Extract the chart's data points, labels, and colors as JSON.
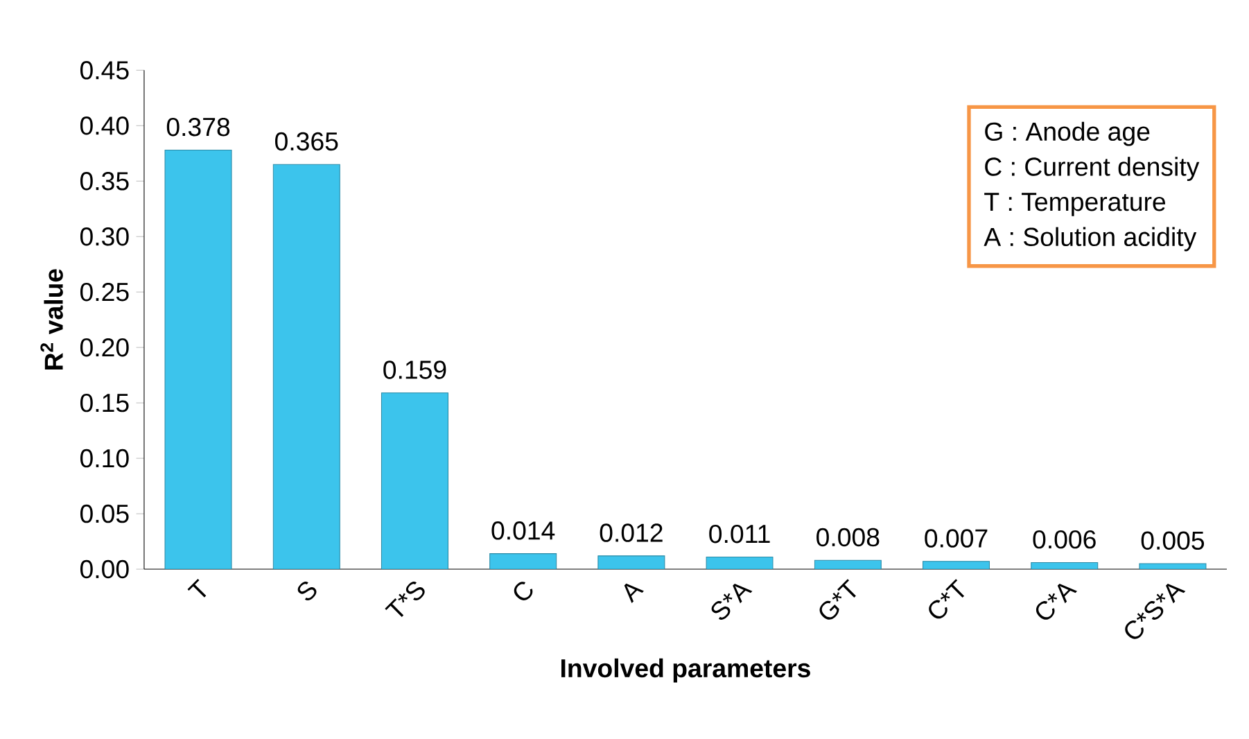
{
  "chart_data": {
    "type": "bar",
    "xlabel": "Involved parameters",
    "ylabel": "R$^{2}$ value",
    "categories": [
      "T",
      "S",
      "T*S",
      "C",
      "A",
      "S*A",
      "G*T",
      "C*T",
      "C*A",
      "C*S*A"
    ],
    "values": [
      0.378,
      0.365,
      0.159,
      0.014,
      0.012,
      0.011,
      0.008,
      0.007,
      0.006,
      0.005
    ],
    "color": "#3cc4ec",
    "ylim": [
      0,
      0.45
    ],
    "yticks": [
      {
        "value": 0,
        "label": "0.00"
      },
      {
        "value": 0.05,
        "label": "0.05"
      },
      {
        "value": 0.1,
        "label": "0.10"
      },
      {
        "value": 0.15,
        "label": "0.15"
      },
      {
        "value": 0.2,
        "label": "0.20"
      },
      {
        "value": 0.25,
        "label": "0.25"
      },
      {
        "value": 0.3,
        "label": "0.30"
      },
      {
        "value": 0.35,
        "label": "0.35"
      },
      {
        "value": 0.4,
        "label": "0.40"
      },
      {
        "value": 0.45,
        "label": "0.45"
      }
    ],
    "data_labels": true,
    "grid": false,
    "annotations": [
      "G : Anode age",
      "C : Current density",
      "T : Temperature",
      "A : Solution acidity"
    ]
  }
}
